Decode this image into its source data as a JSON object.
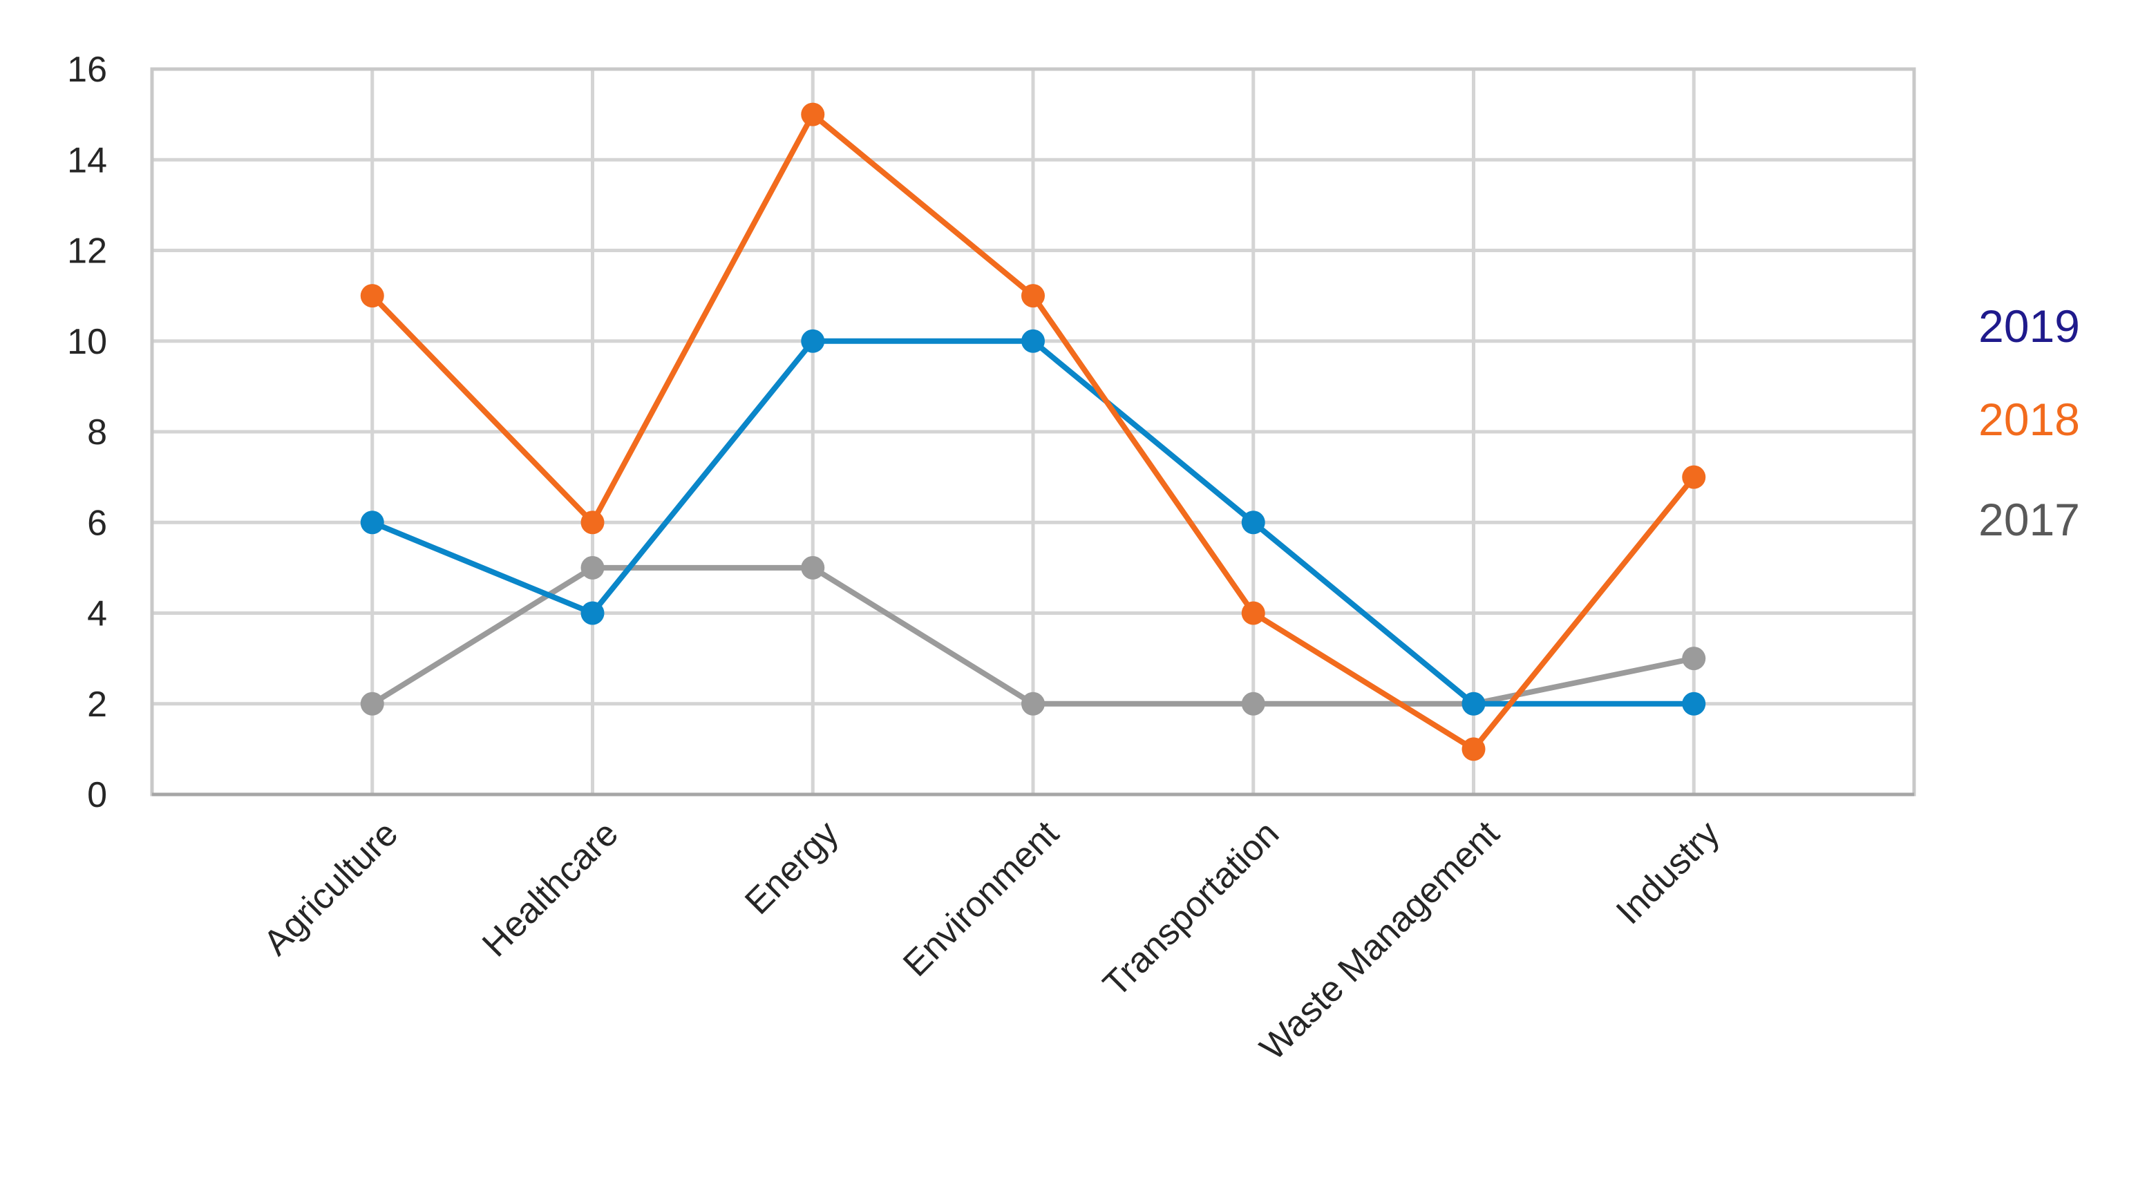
{
  "chart_data": {
    "type": "line",
    "title": "",
    "xlabel": "",
    "ylabel": "",
    "categories": [
      "Agriculture",
      "Healthcare",
      "Energy",
      "Environment",
      "Transportation",
      "Waste Management",
      "Industry"
    ],
    "ylim": [
      0,
      16
    ],
    "yticks": [
      0,
      2,
      4,
      6,
      8,
      10,
      12,
      14,
      16
    ],
    "grid": true,
    "legend": "right",
    "series": [
      {
        "name": "2019",
        "color": "#0a86c9",
        "legend_color": "#1f1a8c",
        "values": [
          6,
          4,
          10,
          10,
          6,
          2,
          2
        ]
      },
      {
        "name": "2018",
        "color": "#f26b1d",
        "legend_color": "#f26b1d",
        "values": [
          11,
          6,
          15,
          11,
          4,
          1,
          7
        ]
      },
      {
        "name": "2017",
        "color": "#9b9b9b",
        "legend_color": "#595959",
        "values": [
          2,
          5,
          5,
          2,
          2,
          2,
          3
        ]
      }
    ]
  }
}
